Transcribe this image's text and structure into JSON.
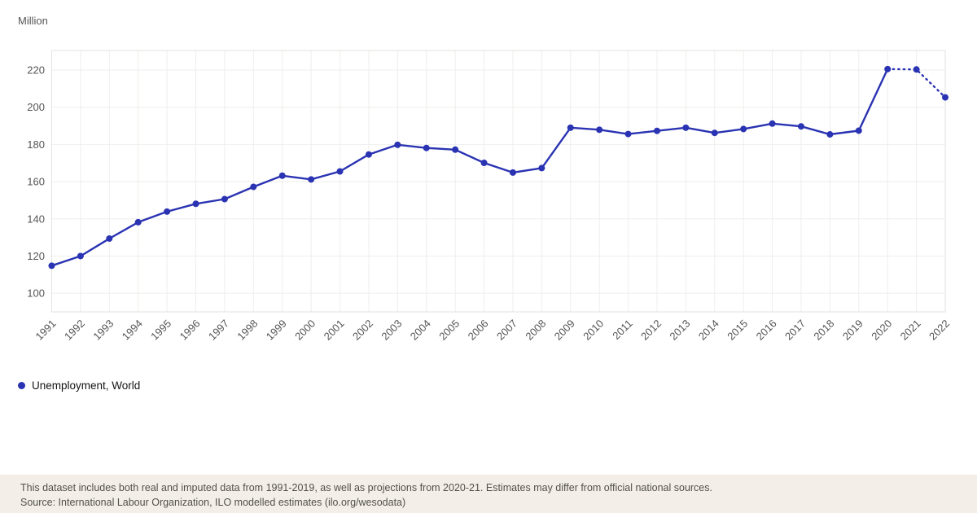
{
  "axis_title": "Million",
  "legend": {
    "items": [
      {
        "label": "Unemployment, World",
        "color": "#2a33b2"
      }
    ]
  },
  "footer": {
    "line1": "This dataset includes both real and imputed data from 1991-2019, as well as projections from 2020-21. Estimates may differ from official national sources.",
    "line2": "Source: International Labour Organization, ILO modelled estimates (ilo.org/wesodata)"
  },
  "colors": {
    "line": "#2a33b2",
    "grid": "#eeeeec",
    "frame": "#e2e2df",
    "tick_text": "#555555",
    "plot_bg": "#ffffff",
    "footer_bg": "#f3efe8"
  },
  "chart_data": {
    "type": "line",
    "title": "",
    "xlabel": "",
    "ylabel": "Million",
    "x": [
      1991,
      1992,
      1993,
      1994,
      1995,
      1996,
      1997,
      1998,
      1999,
      2000,
      2001,
      2002,
      2003,
      2004,
      2005,
      2006,
      2007,
      2008,
      2009,
      2010,
      2011,
      2012,
      2013,
      2014,
      2015,
      2016,
      2017,
      2018,
      2019,
      2020,
      2021,
      2022
    ],
    "series": [
      {
        "name": "Unemployment, World",
        "values": [
          114.8,
          120.0,
          129.4,
          138.2,
          143.9,
          148.1,
          150.6,
          157.2,
          163.2,
          161.2,
          165.5,
          174.6,
          179.8,
          178.1,
          177.2,
          170.1,
          164.9,
          167.3,
          189.0,
          187.9,
          185.6,
          187.3,
          189.0,
          186.2,
          188.3,
          191.2,
          189.7,
          185.4,
          187.4,
          220.5,
          220.3,
          205.3
        ],
        "color": "#2a33b2",
        "projection_start_index": 29,
        "projection_style": "dotted"
      }
    ],
    "ylim": [
      90,
      230.5
    ],
    "yticks": [
      100,
      120,
      140,
      160,
      180,
      200,
      220
    ],
    "grid": true,
    "legend_position": "bottom-left",
    "notes": "real and imputed data 1991-2019, projections 2020-21"
  }
}
